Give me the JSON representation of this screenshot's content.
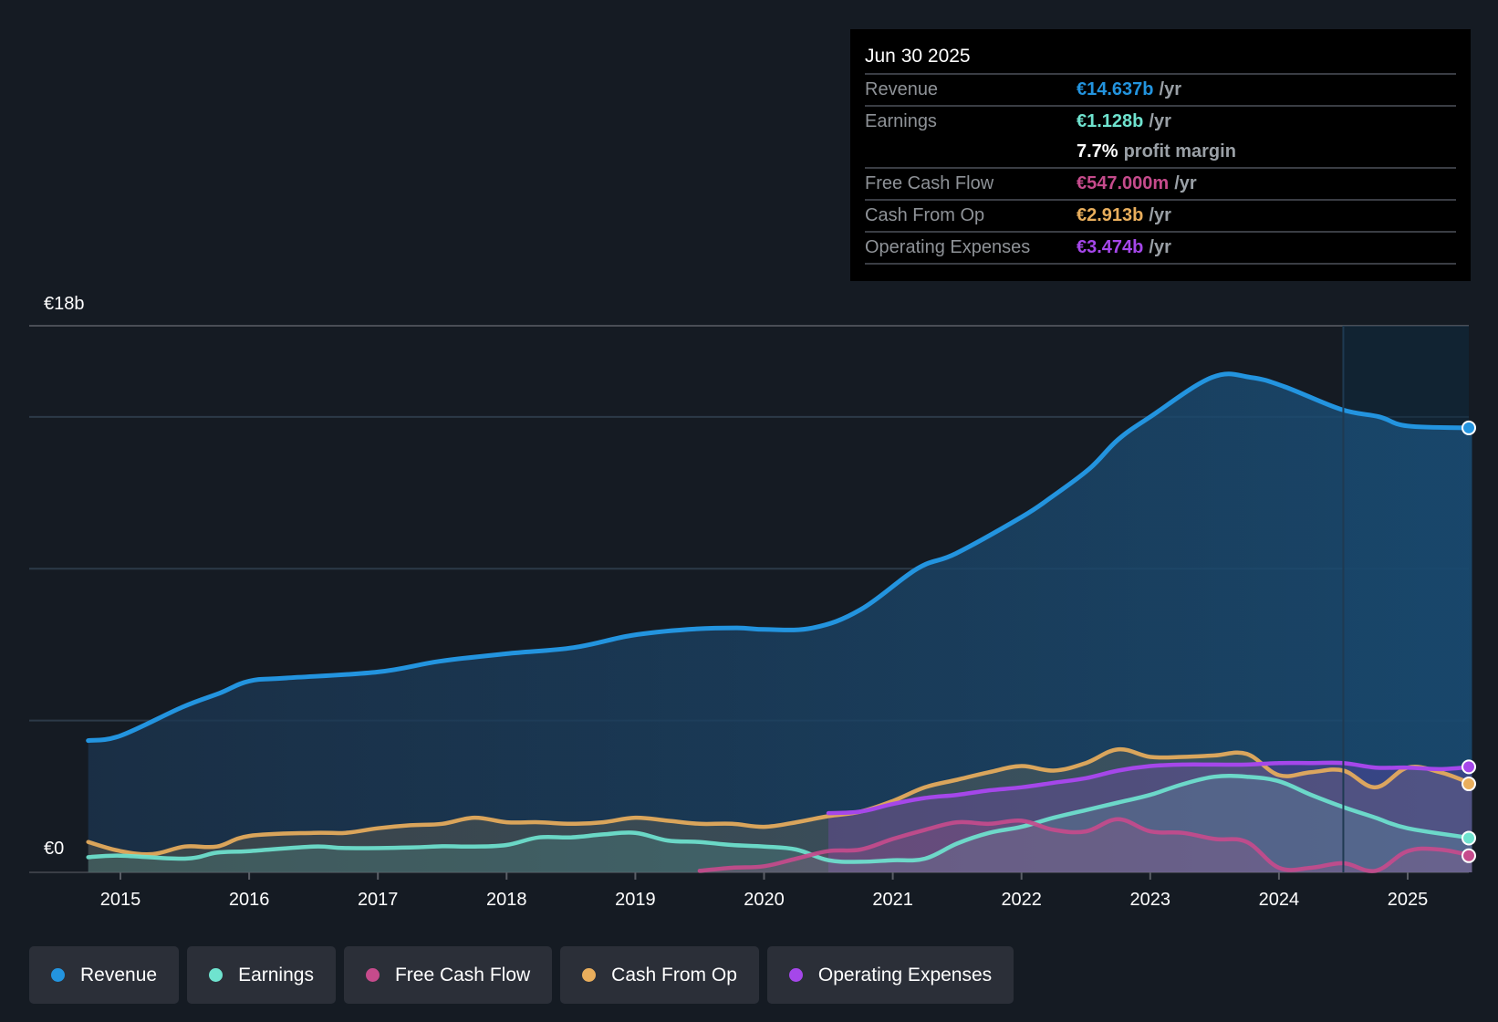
{
  "tooltip": {
    "date": "Jun 30 2025",
    "rows": [
      {
        "label": "Revenue",
        "value": "€14.637b",
        "unit": "/yr",
        "color": "#2394df"
      },
      {
        "label": "Earnings",
        "value": "€1.128b",
        "unit": "/yr",
        "color": "#6fe3cf"
      },
      {
        "label": "",
        "value": "7.7%",
        "unit": "profit margin",
        "color": "#ffffff"
      },
      {
        "label": "Free Cash Flow",
        "value": "€547.000m",
        "unit": "/yr",
        "color": "#c64b8c"
      },
      {
        "label": "Cash From Op",
        "value": "€2.913b",
        "unit": "/yr",
        "color": "#e9ae5c"
      },
      {
        "label": "Operating Expenses",
        "value": "€3.474b",
        "unit": "/yr",
        "color": "#a547ea"
      }
    ]
  },
  "legend": [
    {
      "label": "Revenue",
      "color": "#2394df"
    },
    {
      "label": "Earnings",
      "color": "#6fe3cf"
    },
    {
      "label": "Free Cash Flow",
      "color": "#c64b8c"
    },
    {
      "label": "Cash From Op",
      "color": "#e9ae5c"
    },
    {
      "label": "Operating Expenses",
      "color": "#a547ea"
    }
  ],
  "chart_data": {
    "type": "area",
    "title": "",
    "xlabel": "",
    "ylabel": "",
    "currency": "EUR",
    "unit": "billions",
    "ylim": [
      0,
      18
    ],
    "yticks": [
      {
        "value": 0,
        "label": "€0"
      },
      {
        "value": 18,
        "label": "€18b"
      }
    ],
    "gridlines": [
      0,
      5,
      10,
      15,
      18
    ],
    "xlim": [
      2014.75,
      2025.5
    ],
    "xticks": [
      "2015",
      "2016",
      "2017",
      "2018",
      "2019",
      "2020",
      "2021",
      "2022",
      "2023",
      "2024",
      "2025"
    ],
    "highlight_start": 2024.5,
    "legend_position": "bottom",
    "series": [
      {
        "name": "Revenue",
        "color": "#2394df",
        "x": [
          2014.75,
          2015.0,
          2015.48,
          2015.77,
          2016.0,
          2016.29,
          2017.0,
          2017.48,
          2018.0,
          2018.52,
          2018.97,
          2019.41,
          2019.79,
          2020.01,
          2020.38,
          2020.75,
          2021.19,
          2021.49,
          2022.0,
          2022.23,
          2022.53,
          2022.75,
          2023.0,
          2023.48,
          2023.78,
          2024.04,
          2024.48,
          2024.78,
          2025.0,
          2025.5
        ],
        "values": [
          4.34,
          4.5,
          5.44,
          5.9,
          6.3,
          6.4,
          6.6,
          6.95,
          7.2,
          7.4,
          7.8,
          8.0,
          8.05,
          8.0,
          8.05,
          8.65,
          10.0,
          10.5,
          11.7,
          12.35,
          13.3,
          14.25,
          15.0,
          16.3,
          16.3,
          16.0,
          15.25,
          15.0,
          14.7,
          14.637
        ]
      },
      {
        "name": "Earnings",
        "color": "#6fe3cf",
        "x": [
          2014.75,
          2015.0,
          2015.5,
          2015.75,
          2016.0,
          2016.5,
          2016.75,
          2017.25,
          2017.5,
          2017.75,
          2018.0,
          2018.25,
          2018.5,
          2018.75,
          2019.0,
          2019.25,
          2019.5,
          2019.75,
          2020.0,
          2020.25,
          2020.5,
          2020.75,
          2021.0,
          2021.25,
          2021.5,
          2021.75,
          2022.0,
          2022.25,
          2022.5,
          2022.75,
          2023.0,
          2023.25,
          2023.5,
          2023.75,
          2024.0,
          2024.25,
          2024.5,
          2024.75,
          2025.0,
          2025.5
        ],
        "values": [
          0.5,
          0.55,
          0.45,
          0.65,
          0.7,
          0.85,
          0.8,
          0.82,
          0.86,
          0.85,
          0.9,
          1.15,
          1.15,
          1.25,
          1.3,
          1.05,
          1.0,
          0.9,
          0.85,
          0.75,
          0.4,
          0.35,
          0.4,
          0.45,
          0.95,
          1.3,
          1.5,
          1.8,
          2.05,
          2.3,
          2.55,
          2.9,
          3.15,
          3.15,
          3.0,
          2.55,
          2.15,
          1.8,
          1.45,
          1.128
        ]
      },
      {
        "name": "Free Cash Flow",
        "color": "#c64b8c",
        "x": [
          2019.5,
          2019.75,
          2020.0,
          2020.25,
          2020.5,
          2020.75,
          2021.0,
          2021.25,
          2021.5,
          2021.75,
          2022.0,
          2022.25,
          2022.5,
          2022.75,
          2023.0,
          2023.25,
          2023.5,
          2023.75,
          2024.0,
          2024.25,
          2024.5,
          2024.75,
          2025.0,
          2025.25,
          2025.5
        ],
        "values": [
          0.05,
          0.15,
          0.2,
          0.45,
          0.7,
          0.75,
          1.1,
          1.4,
          1.65,
          1.6,
          1.7,
          1.4,
          1.35,
          1.75,
          1.35,
          1.3,
          1.1,
          1.0,
          0.15,
          0.15,
          0.3,
          0.05,
          0.7,
          0.75,
          0.547
        ]
      },
      {
        "name": "Cash From Op",
        "color": "#e9ae5c",
        "x": [
          2014.75,
          2015.0,
          2015.25,
          2015.5,
          2015.75,
          2016.0,
          2016.5,
          2016.75,
          2017.0,
          2017.25,
          2017.5,
          2017.75,
          2018.0,
          2018.25,
          2018.5,
          2018.75,
          2019.0,
          2019.25,
          2019.5,
          2019.75,
          2020.0,
          2020.25,
          2020.5,
          2020.75,
          2021.0,
          2021.25,
          2021.5,
          2021.75,
          2022.0,
          2022.25,
          2022.5,
          2022.75,
          2023.0,
          2023.25,
          2023.5,
          2023.75,
          2024.0,
          2024.25,
          2024.5,
          2024.75,
          2025.0,
          2025.25,
          2025.5
        ],
        "values": [
          1.0,
          0.7,
          0.6,
          0.85,
          0.85,
          1.2,
          1.3,
          1.3,
          1.45,
          1.55,
          1.6,
          1.8,
          1.65,
          1.65,
          1.6,
          1.65,
          1.8,
          1.7,
          1.6,
          1.6,
          1.5,
          1.65,
          1.85,
          2.0,
          2.35,
          2.8,
          3.05,
          3.3,
          3.5,
          3.35,
          3.6,
          4.05,
          3.8,
          3.8,
          3.85,
          3.9,
          3.2,
          3.3,
          3.35,
          2.8,
          3.45,
          3.3,
          2.913
        ]
      },
      {
        "name": "Operating Expenses",
        "color": "#a547ea",
        "x": [
          2020.5,
          2020.75,
          2021.0,
          2021.25,
          2021.5,
          2021.75,
          2022.0,
          2022.25,
          2022.5,
          2022.75,
          2023.0,
          2023.25,
          2023.5,
          2023.75,
          2024.0,
          2024.25,
          2024.5,
          2024.75,
          2025.0,
          2025.25,
          2025.5
        ],
        "values": [
          1.95,
          2.0,
          2.25,
          2.45,
          2.55,
          2.7,
          2.8,
          2.95,
          3.1,
          3.35,
          3.5,
          3.55,
          3.55,
          3.55,
          3.6,
          3.6,
          3.6,
          3.45,
          3.45,
          3.4,
          3.474
        ]
      }
    ]
  }
}
